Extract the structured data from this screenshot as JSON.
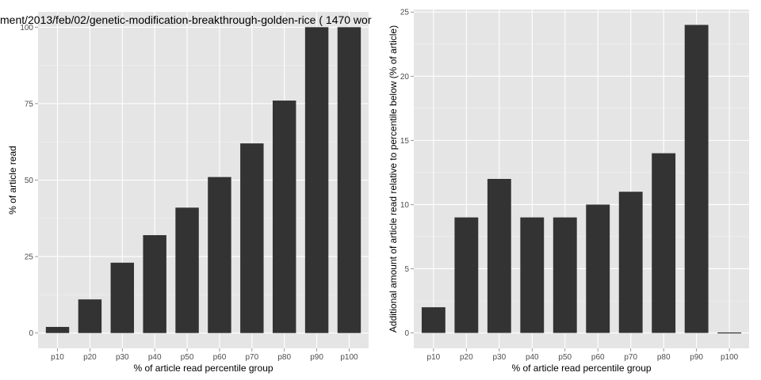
{
  "chart_data": [
    {
      "type": "bar",
      "title": "ment/2013/feb/02/genetic-modification-breakthrough-golden-rice ( 1470 wor",
      "xlabel": "% of article read percentile group",
      "ylabel": "% of article read",
      "categories": [
        "p10",
        "p20",
        "p30",
        "p40",
        "p50",
        "p60",
        "p70",
        "p80",
        "p90",
        "p100"
      ],
      "values": [
        2,
        11,
        23,
        32,
        41,
        51,
        62,
        76,
        100,
        100
      ],
      "ylim": [
        -5,
        105
      ],
      "yticks": [
        0,
        25,
        50,
        75,
        100
      ],
      "grid": true,
      "bar_color": "#333333",
      "panel_color": "#e5e5e5"
    },
    {
      "type": "bar",
      "title": "",
      "xlabel": "% of article read percentile group",
      "ylabel": "Additional amount of article read relative to percentile below (% of article)",
      "categories": [
        "p10",
        "p20",
        "p30",
        "p40",
        "p50",
        "p60",
        "p70",
        "p80",
        "p90",
        "p100"
      ],
      "values": [
        2,
        9,
        12,
        9,
        9,
        10,
        11,
        14,
        24,
        0
      ],
      "ylim": [
        -1.2,
        25.2
      ],
      "yticks": [
        0,
        5,
        10,
        15,
        20,
        25
      ],
      "grid": true,
      "bar_color": "#333333",
      "panel_color": "#e5e5e5"
    }
  ]
}
